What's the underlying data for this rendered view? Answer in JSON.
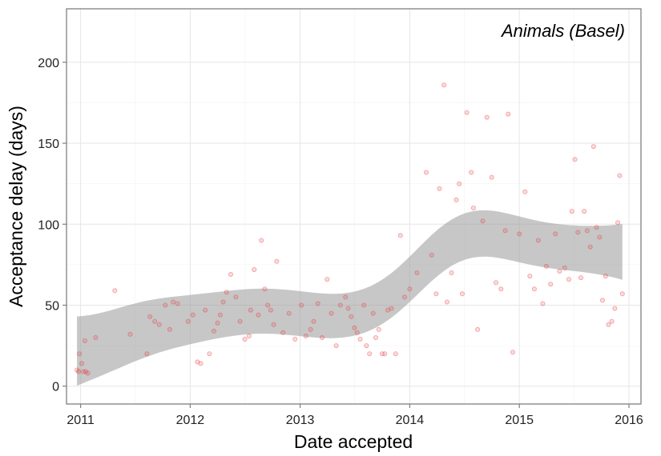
{
  "chart_data": {
    "type": "scatter",
    "xlabel": "Date accepted",
    "ylabel": "Acceptance delay (days)",
    "annotation": "Animals (Basel)",
    "x_ticks": [
      "2011",
      "2012",
      "2013",
      "2014",
      "2015",
      "2016"
    ],
    "y_ticks": [
      0,
      50,
      100,
      150,
      200
    ],
    "xlim": [
      "2010-11-15",
      "2016-02-10"
    ],
    "ylim": [
      -11,
      233
    ],
    "grid": true,
    "point_color": "#e8383d",
    "smooth_color": "#999999",
    "x": [
      "2010-12-20",
      "2010-12-25",
      "2010-12-28",
      "2011-01-05",
      "2011-01-10",
      "2011-01-15",
      "2011-01-18",
      "2011-01-25",
      "2011-02-20",
      "2011-04-25",
      "2011-06-15",
      "2011-08-10",
      "2011-08-20",
      "2011-09-05",
      "2011-09-20",
      "2011-10-10",
      "2011-10-25",
      "2011-11-05",
      "2011-11-20",
      "2011-12-25",
      "2012-01-10",
      "2012-01-25",
      "2012-02-05",
      "2012-02-20",
      "2012-03-05",
      "2012-03-20",
      "2012-04-01",
      "2012-04-10",
      "2012-04-20",
      "2012-05-01",
      "2012-05-15",
      "2012-06-01",
      "2012-06-15",
      "2012-07-01",
      "2012-07-15",
      "2012-07-20",
      "2012-08-01",
      "2012-08-15",
      "2012-08-25",
      "2012-09-05",
      "2012-09-15",
      "2012-09-25",
      "2012-10-05",
      "2012-10-15",
      "2012-11-05",
      "2012-11-25",
      "2012-12-15",
      "2013-01-05",
      "2013-01-20",
      "2013-02-05",
      "2013-02-15",
      "2013-03-01",
      "2013-03-15",
      "2013-04-01",
      "2013-04-15",
      "2013-05-01",
      "2013-05-15",
      "2013-06-01",
      "2013-06-10",
      "2013-06-20",
      "2013-07-01",
      "2013-07-10",
      "2013-07-20",
      "2013-08-01",
      "2013-08-10",
      "2013-08-20",
      "2013-09-01",
      "2013-09-10",
      "2013-09-20",
      "2013-10-01",
      "2013-10-10",
      "2013-10-20",
      "2013-11-01",
      "2013-11-15",
      "2013-12-01",
      "2013-12-15",
      "2014-01-01",
      "2014-01-25",
      "2014-02-25",
      "2014-03-15",
      "2014-03-30",
      "2014-04-10",
      "2014-04-25",
      "2014-05-05",
      "2014-05-20",
      "2014-06-05",
      "2014-06-15",
      "2014-06-25",
      "2014-07-10",
      "2014-07-25",
      "2014-08-01",
      "2014-08-15",
      "2014-09-01",
      "2014-09-15",
      "2014-10-01",
      "2014-10-15",
      "2014-11-01",
      "2014-11-15",
      "2014-11-25",
      "2014-12-10",
      "2015-01-01",
      "2015-01-20",
      "2015-02-05",
      "2015-02-20",
      "2015-03-05",
      "2015-03-20",
      "2015-04-01",
      "2015-04-15",
      "2015-05-01",
      "2015-05-15",
      "2015-06-01",
      "2015-06-15",
      "2015-06-25",
      "2015-07-05",
      "2015-07-15",
      "2015-07-25",
      "2015-08-05",
      "2015-08-15",
      "2015-08-25",
      "2015-09-05",
      "2015-09-15",
      "2015-09-25",
      "2015-10-05",
      "2015-10-15",
      "2015-10-25",
      "2015-11-05",
      "2015-11-15",
      "2015-11-25",
      "2015-12-01",
      "2015-12-10"
    ],
    "y": [
      10,
      9,
      20,
      14,
      9,
      28,
      9,
      8,
      30,
      59,
      32,
      20,
      43,
      40,
      38,
      50,
      35,
      52,
      51,
      40,
      44,
      15,
      14,
      47,
      20,
      34,
      39,
      44,
      52,
      58,
      69,
      55,
      40,
      29,
      31,
      47,
      72,
      44,
      90,
      60,
      50,
      47,
      38,
      77,
      33,
      45,
      29,
      50,
      31,
      35,
      40,
      51,
      30,
      66,
      45,
      25,
      50,
      55,
      48,
      43,
      36,
      33,
      29,
      50,
      25,
      20,
      45,
      30,
      35,
      20,
      20,
      47,
      48,
      20,
      93,
      55,
      60,
      70,
      132,
      81,
      57,
      122,
      186,
      52,
      70,
      115,
      125,
      57,
      169,
      132,
      110,
      35,
      102,
      166,
      129,
      64,
      60,
      96,
      168,
      21,
      94,
      120,
      68,
      60,
      90,
      51,
      74,
      63,
      94,
      71,
      73,
      66,
      108,
      140,
      95,
      67,
      108,
      96,
      86,
      148,
      98,
      92,
      53,
      68,
      38,
      40,
      48,
      101,
      130,
      57
    ]
  }
}
